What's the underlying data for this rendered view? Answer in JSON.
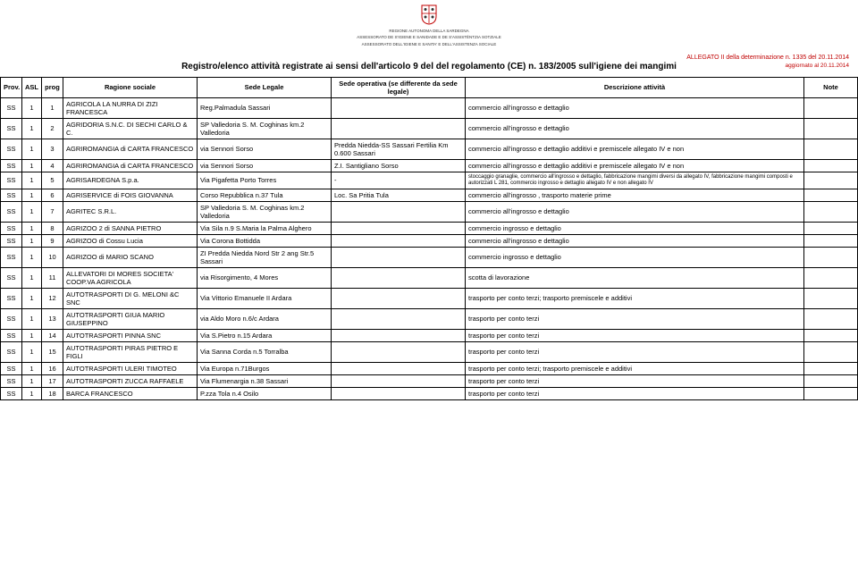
{
  "header": {
    "logo_lines": [
      "REGIONE AUTONOMA DELLA SARDEGNA",
      "ASSESSORATO DE S'IGIENE E SANIDADE E DE S'ASSISTÈNTZIA SOTZIALE",
      "ASSESSORATO DELL'IGIENE E SANITA' E DELL'ASSISTENZA SOCIALE"
    ],
    "allegato": "ALLEGATO II della determinazione n. 1335 del 20.11.2014",
    "aggiornato": "aggiornato al 20.11.2014",
    "registro_title": "Registro/elenco attività registrate ai sensi dell'articolo 9 del del regolamento (CE) n. 183/2005 sull'igiene dei mangimi"
  },
  "columns": {
    "prov": "Prov.",
    "asl": "ASL",
    "prog": "prog",
    "rag": "Ragione sociale",
    "sede": "Sede Legale",
    "sedeop": "Sede operativa (se differente da sede legale)",
    "descr": "Descrizione attività",
    "note": "Note"
  },
  "rows": [
    {
      "prov": "SS",
      "asl": "1",
      "prog": "1",
      "rag": "AGRICOLA LA NURRA DI ZIZI FRANCESCA",
      "sede": "Reg.Palmadula Sassari",
      "sedeop": "",
      "descr": "commercio all'ingrosso e dettaglio",
      "note": ""
    },
    {
      "prov": "SS",
      "asl": "1",
      "prog": "2",
      "rag": "AGRIDORIA S.N.C. DI SECHI CARLO & C.",
      "sede": "SP Valledoria S. M. Coghinas km.2 Valledoria",
      "sedeop": "",
      "descr": "commercio all'ingrosso e dettaglio",
      "note": ""
    },
    {
      "prov": "SS",
      "asl": "1",
      "prog": "3",
      "rag": "AGRIROMANGIA di CARTA FRANCESCO",
      "sede": "via Sennori Sorso",
      "sedeop": "Predda Niedda-SS Sassari Fertilia Km 0.600 Sassari",
      "descr": "commercio all'ingrosso e dettaglio additivi e premiscele allegato IV e non",
      "note": ""
    },
    {
      "prov": "SS",
      "asl": "1",
      "prog": "4",
      "rag": "AGRIROMANGIA di CARTA FRANCESCO",
      "sede": "via Sennori Sorso",
      "sedeop": "Z.I. Santigliano Sorso",
      "descr": "commercio all'ingrosso e dettaglio additivi e premiscele allegato IV e non",
      "note": ""
    },
    {
      "prov": "SS",
      "asl": "1",
      "prog": "5",
      "rag": "AGRISARDEGNA S.p.a.",
      "sede": "Via Pigafetta Porto Torres",
      "sedeop": "-",
      "descr": "stoccaggio granaglie, commercio all'ingrosso e dettaglio, fabbricazione mangimi diversi da allegato IV, fabbricazione mangimi composti e autorizzati L 281, commercio ingrosso e dettaglio allegato IV e non allegato IV",
      "note": "",
      "small": true
    },
    {
      "prov": "SS",
      "asl": "1",
      "prog": "6",
      "rag": "AGRISERVICE di FOIS GIOVANNA",
      "sede": "Corso Repubblica n.37 Tula",
      "sedeop": "Loc. Sa Pritia Tula",
      "descr": "commercio all'ingrosso , trasporto materie prime",
      "note": ""
    },
    {
      "prov": "SS",
      "asl": "1",
      "prog": "7",
      "rag": "AGRITEC S.R.L.",
      "sede": "SP Valledoria S. M. Coghinas km.2 Valledoria",
      "sedeop": "",
      "descr": "commercio all'ingrosso e dettaglio",
      "note": ""
    },
    {
      "prov": "SS",
      "asl": "1",
      "prog": "8",
      "rag": "AGRIZOO 2 di SANNA PIETRO",
      "sede": "Via Sila n.9 S.Maria la Palma Alghero",
      "sedeop": "",
      "descr": "commercio ingrosso e dettaglio",
      "note": ""
    },
    {
      "prov": "SS",
      "asl": "1",
      "prog": "9",
      "rag": "AGRIZOO di Cossu Lucia",
      "sede": "Via Corona Bottidda",
      "sedeop": "",
      "descr": "commercio all'ingrosso e dettaglio",
      "note": ""
    },
    {
      "prov": "SS",
      "asl": "1",
      "prog": "10",
      "rag": "AGRIZOO di MARIO SCANO",
      "sede": "ZI Predda Niedda Nord Str 2 ang Str.5 Sassari",
      "sedeop": "",
      "descr": "commercio ingrosso e dettaglio",
      "note": ""
    },
    {
      "prov": "SS",
      "asl": "1",
      "prog": "11",
      "rag": "ALLEVATORI DI MORES SOCIETA' COOP.VA AGRICOLA",
      "sede": "via Risorgimento, 4 Mores",
      "sedeop": "",
      "descr": "scotta di lavorazione",
      "note": ""
    },
    {
      "prov": "SS",
      "asl": "1",
      "prog": "12",
      "rag": "AUTOTRASPORTI DI G. MELONI &C SNC",
      "sede": "Via Vittorio Emanuele II Ardara",
      "sedeop": "",
      "descr": "trasporto per conto terzi; trasporto premiscele e additivi",
      "note": ""
    },
    {
      "prov": "SS",
      "asl": "1",
      "prog": "13",
      "rag": "AUTOTRASPORTI GIUA MARIO GIUSEPPINO",
      "sede": "via Aldo Moro n.6/c Ardara",
      "sedeop": "",
      "descr": "trasporto per conto terzi",
      "note": ""
    },
    {
      "prov": "SS",
      "asl": "1",
      "prog": "14",
      "rag": "AUTOTRASPORTI PINNA SNC",
      "sede": "Via S.Pietro n.15 Ardara",
      "sedeop": "",
      "descr": "trasporto per conto terzi",
      "note": ""
    },
    {
      "prov": "SS",
      "asl": "1",
      "prog": "15",
      "rag": "AUTOTRASPORTI PIRAS PIETRO E FIGLI",
      "sede": "Via Sanna Corda n.5 Torralba",
      "sedeop": "",
      "descr": "trasporto per conto terzi",
      "note": ""
    },
    {
      "prov": "SS",
      "asl": "1",
      "prog": "16",
      "rag": "AUTOTRASPORTI ULERI TIMOTEO",
      "sede": "Via Europa n.71Burgos",
      "sedeop": "",
      "descr": "trasporto per conto terzi; trasporto premiscele e additivi",
      "note": ""
    },
    {
      "prov": "SS",
      "asl": "1",
      "prog": "17",
      "rag": "AUTOTRASPORTI ZUCCA RAFFAELE",
      "sede": "Via Flumenargia n.38 Sassari",
      "sedeop": "",
      "descr": "trasporto per conto terzi",
      "note": ""
    },
    {
      "prov": "SS",
      "asl": "1",
      "prog": "18",
      "rag": "BARCA FRANCESCO",
      "sede": "P.zza Tola n.4 Osilo",
      "sedeop": "",
      "descr": "trasporto per conto terzi",
      "note": ""
    }
  ],
  "style": {
    "accent_color": "#c00000",
    "border_color": "#000000",
    "background": "#ffffff"
  }
}
